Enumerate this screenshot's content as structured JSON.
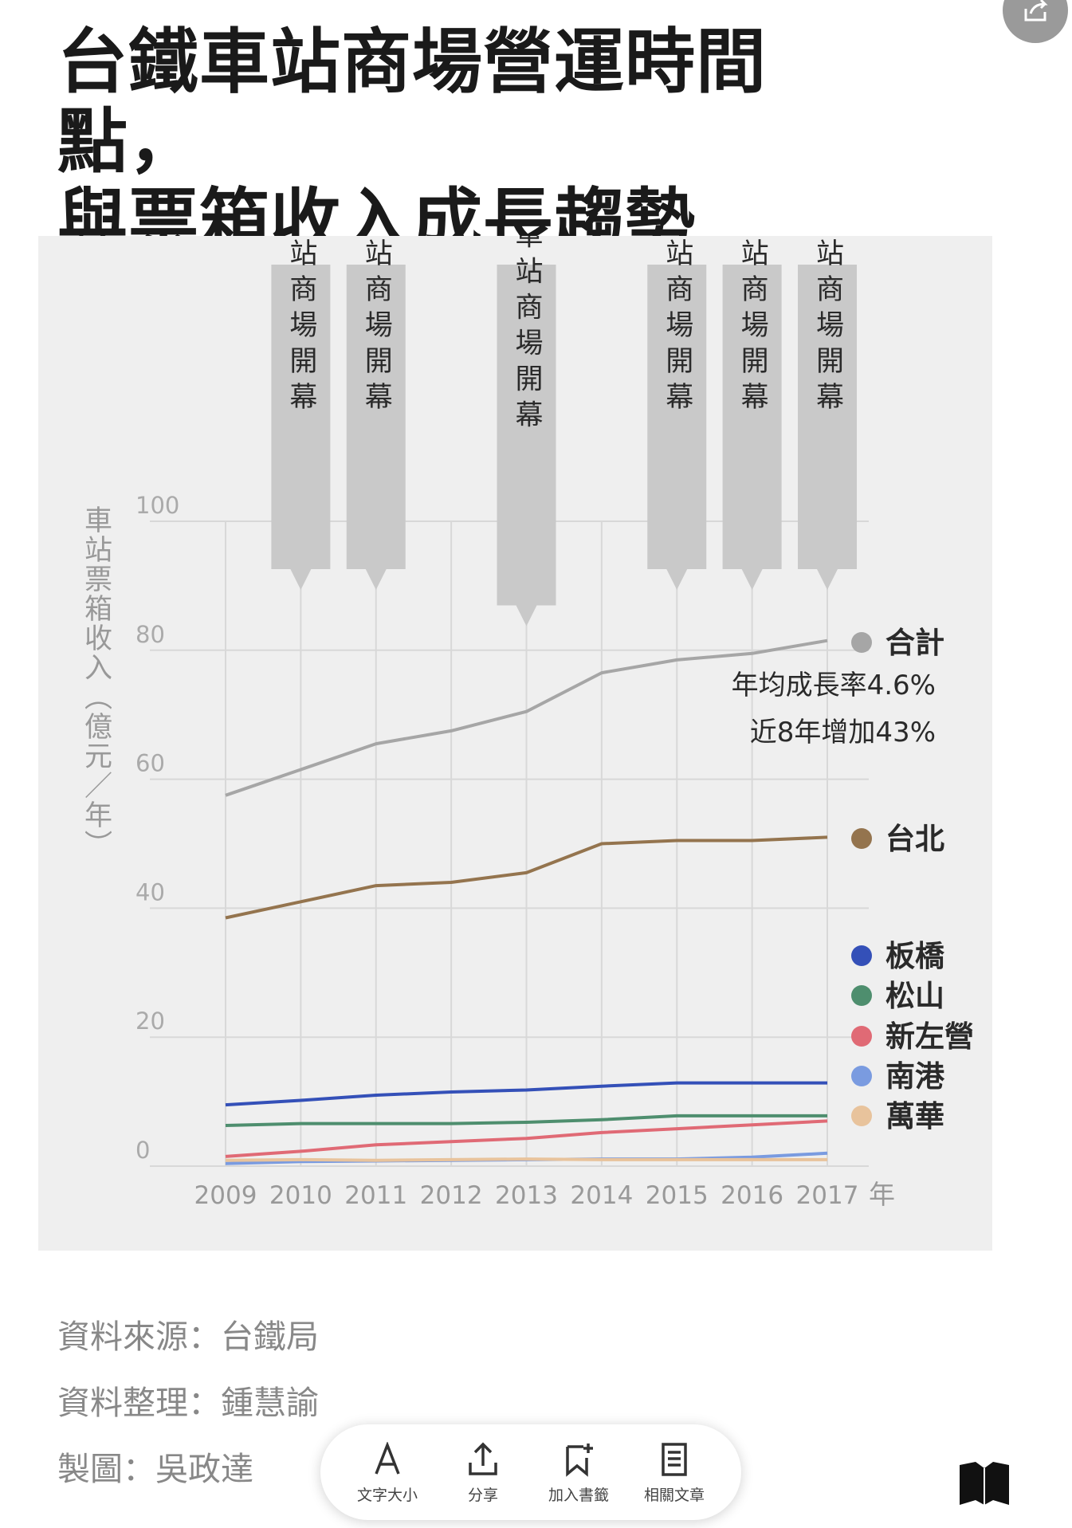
{
  "article": {
    "title_line1": "台鐵車站商場營運時間點，",
    "title_line2": "與票箱收入成長趨勢"
  },
  "chart_data": {
    "type": "line",
    "ylabel": "車站票箱收入（億元／年）",
    "xlabel": "年",
    "ylim": [
      0,
      100
    ],
    "y_ticks": [
      0,
      20,
      40,
      60,
      80,
      100
    ],
    "categories": [
      "2009",
      "2010",
      "2011",
      "2012",
      "2013",
      "2014",
      "2015",
      "2016",
      "2017"
    ],
    "series": [
      {
        "name": "合計",
        "color": "#a6a6a6",
        "values": [
          57.5,
          61.5,
          65.5,
          67.5,
          70.5,
          76.5,
          78.5,
          79.5,
          81.5
        ]
      },
      {
        "name": "台北",
        "color": "#94744e",
        "values": [
          38.5,
          41,
          43.5,
          44,
          45.5,
          50,
          50.5,
          50.5,
          51
        ]
      },
      {
        "name": "板橋",
        "color": "#3450b8",
        "values": [
          9.5,
          10.2,
          11.0,
          11.5,
          11.8,
          12.4,
          12.9,
          12.9,
          12.9
        ]
      },
      {
        "name": "松山",
        "color": "#4e8e6e",
        "values": [
          6.3,
          6.6,
          6.6,
          6.6,
          6.8,
          7.2,
          7.8,
          7.8,
          7.8
        ]
      },
      {
        "name": "新左營",
        "color": "#e06a75",
        "values": [
          1.5,
          2.3,
          3.3,
          3.8,
          4.3,
          5.2,
          5.8,
          6.4,
          7.0
        ]
      },
      {
        "name": "南港",
        "color": "#7a9be0",
        "values": [
          0.4,
          0.7,
          0.8,
          0.9,
          1.0,
          1.1,
          1.1,
          1.4,
          2.0
        ]
      },
      {
        "name": "萬華",
        "color": "#e8c39c",
        "values": [
          0.9,
          1.0,
          0.9,
          1.0,
          1.1,
          1.0,
          1.0,
          1.0,
          1.0
        ]
      }
    ],
    "events": [
      {
        "year": "2010",
        "label": "板橋車站商場開幕"
      },
      {
        "year": "2011",
        "label": "台北車站商場開幕"
      },
      {
        "year": "2013",
        "label": "新左營車站商場開幕"
      },
      {
        "year": "2015",
        "label": "松山車站商場開幕"
      },
      {
        "year": "2016",
        "label": "南港車站商場開幕"
      },
      {
        "year": "2017",
        "label": "萬華車站商場開幕"
      }
    ],
    "annotations": [
      {
        "text": "年均成長率4.6%"
      },
      {
        "text": "近8年增加43%"
      }
    ],
    "grid_color": "#d8d8d8",
    "label_box_color": "#c9c9c9"
  },
  "credits": {
    "source": "資料來源：台鐵局",
    "compiled": "資料整理：鍾慧諭",
    "graphic": "製圖：吳政達"
  },
  "toolbar": {
    "font_size": "文字大小",
    "share": "分享",
    "bookmark": "加入書籤",
    "related": "相關文章"
  },
  "share_fab": {
    "icon": "share-icon"
  }
}
